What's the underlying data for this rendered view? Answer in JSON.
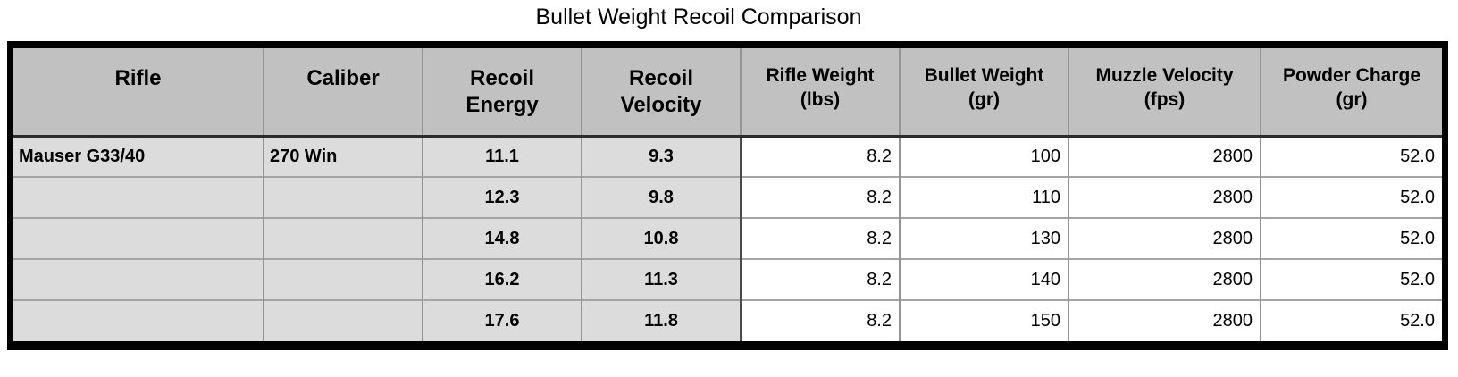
{
  "title": "Bullet Weight Recoil Comparison",
  "chart_data": {
    "type": "table",
    "title": "Bullet Weight Recoil Comparison",
    "columns": [
      "Rifle",
      "Caliber",
      "Recoil Energy",
      "Recoil Velocity",
      "Rifle Weight (lbs)",
      "Bullet Weight (gr)",
      "Muzzle Velocity (fps)",
      "Powder Charge (gr)"
    ],
    "rows": [
      [
        "Mauser G33/40",
        "270 Win",
        11.1,
        9.3,
        8.2,
        100,
        2800,
        52.0
      ],
      [
        "",
        "",
        12.3,
        9.8,
        8.2,
        110,
        2800,
        52.0
      ],
      [
        "",
        "",
        14.8,
        10.8,
        8.2,
        130,
        2800,
        52.0
      ],
      [
        "",
        "",
        16.2,
        11.3,
        8.2,
        140,
        2800,
        52.0
      ],
      [
        "",
        "",
        17.6,
        11.8,
        8.2,
        150,
        2800,
        52.0
      ]
    ]
  },
  "table": {
    "headers": [
      {
        "line1": "Rifle",
        "line2": ""
      },
      {
        "line1": "Caliber",
        "line2": ""
      },
      {
        "line1": "Recoil",
        "line2": "Energy"
      },
      {
        "line1": "Recoil",
        "line2": "Velocity"
      },
      {
        "line1": "Rifle Weight",
        "line2": "(lbs)"
      },
      {
        "line1": "Bullet Weight",
        "line2": "(gr)"
      },
      {
        "line1": "Muzzle Velocity",
        "line2": "(fps)"
      },
      {
        "line1": "Powder Charge",
        "line2": "(gr)"
      }
    ],
    "rows": [
      {
        "rifle": "Mauser G33/40",
        "caliber": "270 Win",
        "recoil_energy": "11.1",
        "recoil_velocity": "9.3",
        "rifle_weight": "8.2",
        "bullet_weight": "100",
        "muzzle_velocity": "2800",
        "powder_charge": "52.0"
      },
      {
        "rifle": "",
        "caliber": "",
        "recoil_energy": "12.3",
        "recoil_velocity": "9.8",
        "rifle_weight": "8.2",
        "bullet_weight": "110",
        "muzzle_velocity": "2800",
        "powder_charge": "52.0"
      },
      {
        "rifle": "",
        "caliber": "",
        "recoil_energy": "14.8",
        "recoil_velocity": "10.8",
        "rifle_weight": "8.2",
        "bullet_weight": "130",
        "muzzle_velocity": "2800",
        "powder_charge": "52.0"
      },
      {
        "rifle": "",
        "caliber": "",
        "recoil_energy": "16.2",
        "recoil_velocity": "11.3",
        "rifle_weight": "8.2",
        "bullet_weight": "140",
        "muzzle_velocity": "2800",
        "powder_charge": "52.0"
      },
      {
        "rifle": "",
        "caliber": "",
        "recoil_energy": "17.6",
        "recoil_velocity": "11.8",
        "rifle_weight": "8.2",
        "bullet_weight": "150",
        "muzzle_velocity": "2800",
        "powder_charge": "52.0"
      }
    ]
  },
  "colors": {
    "header_bg": "#c1c1c1",
    "label_cell_bg": "#dcdcdc",
    "value_cell_bg": "#ffffff",
    "outer_border": "#000000",
    "grid_line": "#949494",
    "text": "#000000"
  }
}
